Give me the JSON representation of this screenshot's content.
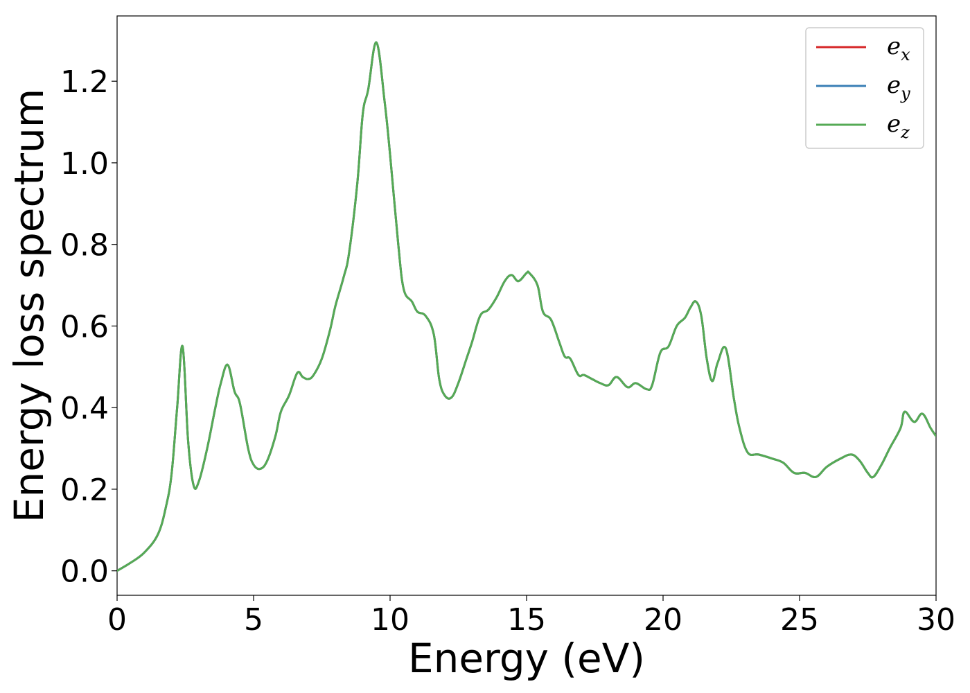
{
  "chart_data": {
    "type": "line",
    "title": "",
    "xlabel": "Energy (eV)",
    "ylabel": "Energy loss spectrum",
    "xlim": [
      0,
      30
    ],
    "ylim": [
      -0.06,
      1.36
    ],
    "xticks": [
      0,
      5,
      10,
      15,
      20,
      25,
      30
    ],
    "xtick_labels": [
      "0",
      "5",
      "10",
      "15",
      "20",
      "25",
      "30"
    ],
    "yticks": [
      0.0,
      0.2,
      0.4,
      0.6,
      0.8,
      1.0,
      1.2
    ],
    "ytick_labels": [
      "0.0",
      "0.2",
      "0.4",
      "0.6",
      "0.8",
      "1.0",
      "1.2"
    ],
    "grid": false,
    "legend": "top-right",
    "x": [
      0,
      0.5,
      1.0,
      1.5,
      1.8,
      2.0,
      2.2,
      2.4,
      2.6,
      2.8,
      3.0,
      3.3,
      3.6,
      3.8,
      4.05,
      4.3,
      4.5,
      4.8,
      5.0,
      5.25,
      5.5,
      5.8,
      6.0,
      6.3,
      6.6,
      6.8,
      7.0,
      7.2,
      7.5,
      7.8,
      8.0,
      8.3,
      8.5,
      8.8,
      9.0,
      9.2,
      9.5,
      9.8,
      10.0,
      10.3,
      10.5,
      10.8,
      11.0,
      11.3,
      11.6,
      11.8,
      12.0,
      12.25,
      12.5,
      12.8,
      13.0,
      13.3,
      13.6,
      13.9,
      14.2,
      14.45,
      14.7,
      15.0,
      15.1,
      15.4,
      15.6,
      15.9,
      16.2,
      16.4,
      16.6,
      16.9,
      17.1,
      17.4,
      17.7,
      18.0,
      18.3,
      18.7,
      19.0,
      19.4,
      19.6,
      19.9,
      20.2,
      20.5,
      20.8,
      21.0,
      21.2,
      21.4,
      21.6,
      21.8,
      22.0,
      22.3,
      22.6,
      22.8,
      23.1,
      23.5,
      24.0,
      24.4,
      24.8,
      25.2,
      25.6,
      26.0,
      26.5,
      26.9,
      27.2,
      27.5,
      27.7,
      28.0,
      28.3,
      28.7,
      28.85,
      29.2,
      29.5,
      29.8,
      30.0
    ],
    "series": [
      {
        "name": "e_x",
        "label_main": "e",
        "label_sub": "x",
        "color": "#d62728",
        "values": [
          0.0,
          0.02,
          0.045,
          0.09,
          0.16,
          0.24,
          0.4,
          0.55,
          0.32,
          0.21,
          0.22,
          0.3,
          0.4,
          0.46,
          0.505,
          0.44,
          0.41,
          0.3,
          0.26,
          0.25,
          0.27,
          0.33,
          0.39,
          0.43,
          0.485,
          0.475,
          0.47,
          0.48,
          0.52,
          0.59,
          0.65,
          0.72,
          0.78,
          0.95,
          1.12,
          1.18,
          1.295,
          1.15,
          1.02,
          0.8,
          0.69,
          0.66,
          0.635,
          0.625,
          0.58,
          0.47,
          0.43,
          0.425,
          0.46,
          0.52,
          0.56,
          0.625,
          0.64,
          0.67,
          0.71,
          0.725,
          0.71,
          0.73,
          0.73,
          0.7,
          0.635,
          0.615,
          0.56,
          0.525,
          0.52,
          0.48,
          0.48,
          0.47,
          0.46,
          0.455,
          0.475,
          0.45,
          0.46,
          0.445,
          0.455,
          0.535,
          0.55,
          0.6,
          0.62,
          0.645,
          0.66,
          0.625,
          0.52,
          0.465,
          0.51,
          0.545,
          0.42,
          0.35,
          0.29,
          0.285,
          0.275,
          0.265,
          0.24,
          0.24,
          0.23,
          0.255,
          0.275,
          0.285,
          0.27,
          0.24,
          0.23,
          0.26,
          0.3,
          0.35,
          0.39,
          0.365,
          0.385,
          0.35,
          0.33
        ]
      },
      {
        "name": "e_y",
        "label_main": "e",
        "label_sub": "y",
        "color": "#3a7fb5",
        "values": [
          0.0,
          0.02,
          0.045,
          0.09,
          0.16,
          0.24,
          0.4,
          0.55,
          0.32,
          0.21,
          0.22,
          0.3,
          0.4,
          0.46,
          0.505,
          0.44,
          0.41,
          0.3,
          0.26,
          0.25,
          0.27,
          0.33,
          0.39,
          0.43,
          0.485,
          0.475,
          0.47,
          0.48,
          0.52,
          0.59,
          0.65,
          0.72,
          0.78,
          0.95,
          1.12,
          1.18,
          1.295,
          1.15,
          1.02,
          0.8,
          0.69,
          0.66,
          0.635,
          0.625,
          0.58,
          0.47,
          0.43,
          0.425,
          0.46,
          0.52,
          0.56,
          0.625,
          0.64,
          0.67,
          0.71,
          0.725,
          0.71,
          0.73,
          0.73,
          0.7,
          0.635,
          0.615,
          0.56,
          0.525,
          0.52,
          0.48,
          0.48,
          0.47,
          0.46,
          0.455,
          0.475,
          0.45,
          0.46,
          0.445,
          0.455,
          0.535,
          0.55,
          0.6,
          0.62,
          0.645,
          0.66,
          0.625,
          0.52,
          0.465,
          0.51,
          0.545,
          0.42,
          0.35,
          0.29,
          0.285,
          0.275,
          0.265,
          0.24,
          0.24,
          0.23,
          0.255,
          0.275,
          0.285,
          0.27,
          0.24,
          0.23,
          0.26,
          0.3,
          0.35,
          0.39,
          0.365,
          0.385,
          0.35,
          0.33
        ]
      },
      {
        "name": "e_z",
        "label_main": "e",
        "label_sub": "z",
        "color": "#55aa55",
        "values": [
          0.0,
          0.02,
          0.045,
          0.09,
          0.16,
          0.24,
          0.4,
          0.55,
          0.32,
          0.21,
          0.22,
          0.3,
          0.4,
          0.46,
          0.505,
          0.44,
          0.41,
          0.3,
          0.26,
          0.25,
          0.27,
          0.33,
          0.39,
          0.43,
          0.485,
          0.475,
          0.47,
          0.48,
          0.52,
          0.59,
          0.65,
          0.72,
          0.78,
          0.95,
          1.12,
          1.18,
          1.295,
          1.15,
          1.02,
          0.8,
          0.69,
          0.66,
          0.635,
          0.625,
          0.58,
          0.47,
          0.43,
          0.425,
          0.46,
          0.52,
          0.56,
          0.625,
          0.64,
          0.67,
          0.71,
          0.725,
          0.71,
          0.73,
          0.73,
          0.7,
          0.635,
          0.615,
          0.56,
          0.525,
          0.52,
          0.48,
          0.48,
          0.47,
          0.46,
          0.455,
          0.475,
          0.45,
          0.46,
          0.445,
          0.455,
          0.535,
          0.55,
          0.6,
          0.62,
          0.645,
          0.66,
          0.625,
          0.52,
          0.465,
          0.51,
          0.545,
          0.42,
          0.35,
          0.29,
          0.285,
          0.275,
          0.265,
          0.24,
          0.24,
          0.23,
          0.255,
          0.275,
          0.285,
          0.27,
          0.24,
          0.23,
          0.26,
          0.3,
          0.35,
          0.39,
          0.365,
          0.385,
          0.35,
          0.33
        ]
      }
    ]
  }
}
